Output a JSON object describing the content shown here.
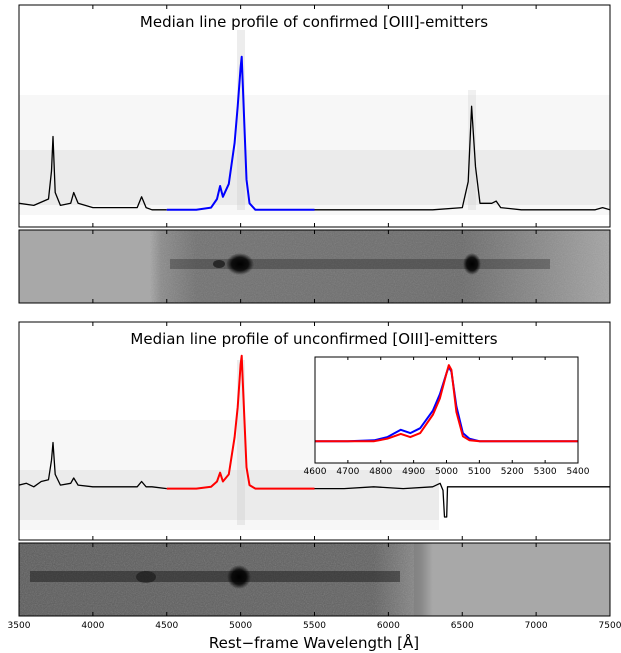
{
  "chart_data": [
    {
      "type": "line",
      "panel": "top",
      "title": "Median line profile of confirmed [OIII]-emitters",
      "xlim": [
        3500,
        7500
      ],
      "series": [
        {
          "color": "#000000",
          "x": [
            3500,
            3600,
            3700,
            3720,
            3730,
            3745,
            3780,
            3850,
            3870,
            3900,
            4000,
            4100,
            4200,
            4300,
            4330,
            4360,
            4400,
            4500
          ],
          "y": [
            0.05,
            0.04,
            0.07,
            0.2,
            0.36,
            0.1,
            0.04,
            0.05,
            0.1,
            0.05,
            0.03,
            0.03,
            0.03,
            0.03,
            0.08,
            0.03,
            0.02,
            0.02
          ]
        },
        {
          "color": "#0000ff",
          "x": [
            4500,
            4600,
            4700,
            4800,
            4840,
            4861,
            4880,
            4920,
            4959,
            4980,
            5000,
            5007,
            5015,
            5040,
            5060,
            5100,
            5200,
            5300,
            5400,
            5500
          ],
          "y": [
            0.02,
            0.02,
            0.02,
            0.03,
            0.07,
            0.13,
            0.08,
            0.14,
            0.33,
            0.5,
            0.68,
            0.73,
            0.6,
            0.16,
            0.05,
            0.02,
            0.02,
            0.02,
            0.02,
            0.02
          ]
        },
        {
          "color": "#000000",
          "x": [
            5500,
            5800,
            6000,
            6300,
            6500,
            6540,
            6563,
            6590,
            6620,
            6700,
            6730,
            6760,
            6900,
            7100,
            7300,
            7400,
            7450,
            7500
          ],
          "y": [
            0.02,
            0.02,
            0.02,
            0.02,
            0.03,
            0.15,
            0.5,
            0.22,
            0.05,
            0.05,
            0.06,
            0.03,
            0.02,
            0.02,
            0.02,
            0.02,
            0.03,
            0.02
          ]
        }
      ]
    },
    {
      "type": "line",
      "panel": "bottom",
      "title": "Median line profile of unconfirmed [OIII]-emitters",
      "xlim": [
        3500,
        7500
      ],
      "xlabel": "Rest−frame Wavelength [Å]",
      "xticks": [
        "3500",
        "4000",
        "4500",
        "5000",
        "5500",
        "6000",
        "6500",
        "7000",
        "7500"
      ],
      "series": [
        {
          "color": "#000000",
          "x": [
            3500,
            3550,
            3600,
            3650,
            3700,
            3720,
            3730,
            3745,
            3780,
            3850,
            3870,
            3900,
            4000,
            4100,
            4200,
            4300,
            4330,
            4360,
            4400,
            4500
          ],
          "y": [
            0.04,
            0.05,
            0.03,
            0.06,
            0.07,
            0.18,
            0.28,
            0.1,
            0.04,
            0.05,
            0.08,
            0.04,
            0.03,
            0.03,
            0.03,
            0.03,
            0.06,
            0.03,
            0.03,
            0.02
          ]
        },
        {
          "color": "#ff0000",
          "x": [
            4500,
            4600,
            4700,
            4800,
            4840,
            4861,
            4880,
            4920,
            4959,
            4980,
            5000,
            5007,
            5015,
            5040,
            5060,
            5100,
            5200,
            5300,
            5400,
            5500
          ],
          "y": [
            0.02,
            0.02,
            0.02,
            0.03,
            0.06,
            0.11,
            0.06,
            0.1,
            0.31,
            0.48,
            0.72,
            0.77,
            0.62,
            0.14,
            0.04,
            0.02,
            0.02,
            0.02,
            0.02,
            0.02
          ]
        },
        {
          "color": "#000000",
          "x": [
            5500,
            5700,
            5900,
            6100,
            6300,
            6350,
            6370,
            6380,
            6395,
            6400,
            7500
          ],
          "y": [
            0.02,
            0.02,
            0.03,
            0.02,
            0.03,
            0.05,
            0.01,
            -0.14,
            -0.14,
            0.03,
            0.03
          ]
        }
      ]
    },
    {
      "type": "line",
      "panel": "inset",
      "xlim": [
        4600,
        5400
      ],
      "xticks": [
        "4600",
        "4700",
        "4800",
        "4900",
        "5000",
        "5100",
        "5200",
        "5300",
        "5400"
      ],
      "series": [
        {
          "color": "#0000ff",
          "x": [
            4600,
            4700,
            4780,
            4820,
            4861,
            4890,
            4920,
            4959,
            4980,
            5000,
            5007,
            5015,
            5030,
            5050,
            5070,
            5100,
            5200,
            5300,
            5400
          ],
          "y": [
            0.02,
            0.02,
            0.03,
            0.07,
            0.16,
            0.12,
            0.18,
            0.4,
            0.6,
            0.86,
            0.94,
            0.88,
            0.45,
            0.12,
            0.05,
            0.02,
            0.02,
            0.02,
            0.02
          ]
        },
        {
          "color": "#ff0000",
          "x": [
            4600,
            4700,
            4780,
            4820,
            4861,
            4890,
            4920,
            4959,
            4980,
            5000,
            5007,
            5015,
            5030,
            5050,
            5070,
            5100,
            5200,
            5300,
            5400
          ],
          "y": [
            0.02,
            0.02,
            0.02,
            0.05,
            0.11,
            0.07,
            0.12,
            0.35,
            0.55,
            0.86,
            0.96,
            0.9,
            0.38,
            0.08,
            0.03,
            0.02,
            0.02,
            0.02,
            0.02
          ]
        }
      ]
    }
  ]
}
